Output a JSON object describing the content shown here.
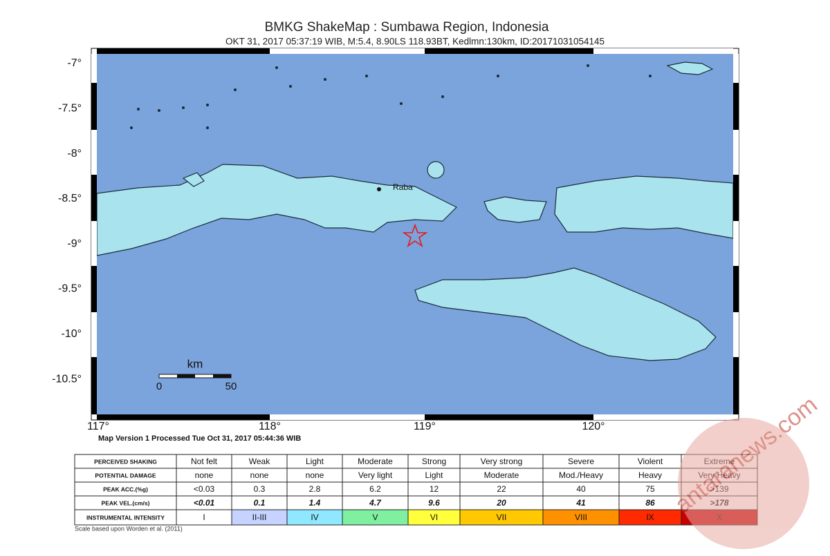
{
  "header": {
    "title": "BMKG ShakeMap : Sumbawa Region, Indonesia",
    "subtitle": "OKT 31, 2017 05:37:19 WIB, M:5.4, 8.90LS 118.93BT, Kedlmn:130km, ID:20171031054145"
  },
  "map": {
    "lat_labels": [
      "-7°",
      "-7.5°",
      "-8°",
      "-8.5°",
      "-9°",
      "-9.5°",
      "-10°",
      "-10.5°"
    ],
    "lon_labels": [
      "117°",
      "118°",
      "119°",
      "120°"
    ],
    "place_label": "Raba",
    "scale": {
      "unit": "km",
      "labels": [
        "0",
        "50"
      ]
    },
    "version_note": "Map Version 1 Processed Tue Oct 31, 2017 05:44:36 WIB"
  },
  "legend_table": {
    "rows": [
      [
        "PERCEIVED SHAKING",
        "Not felt",
        "Weak",
        "Light",
        "Moderate",
        "Strong",
        "Very strong",
        "Severe",
        "Violent",
        "Extreme"
      ],
      [
        "POTENTIAL DAMAGE",
        "none",
        "none",
        "none",
        "Very light",
        "Light",
        "Moderate",
        "Mod./Heavy",
        "Heavy",
        "Very Heavy"
      ],
      [
        "PEAK ACC.(%g)",
        "<0.03",
        "0.3",
        "2.8",
        "6.2",
        "12",
        "22",
        "40",
        "75",
        ">139"
      ],
      [
        "PEAK VEL.(cm/s)",
        "<0.01",
        "0.1",
        "1.4",
        "4.7",
        "9.6",
        "20",
        "41",
        "86",
        ">178"
      ],
      [
        "INSTRUMENTAL INTENSITY",
        "I",
        "II-III",
        "IV",
        "V",
        "VI",
        "VII",
        "VIII",
        "IX",
        "X"
      ]
    ]
  },
  "footnote": "Scale based upon Worden et al. (2011)",
  "watermark": "antaranews.com"
}
